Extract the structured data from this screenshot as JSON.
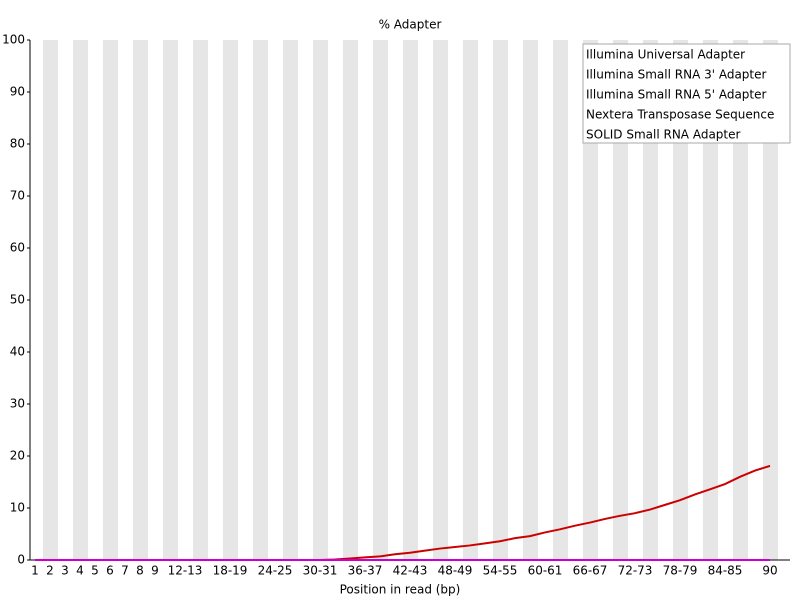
{
  "chart_data": {
    "type": "line",
    "title": "% Adapter",
    "x_label": "Position in read (bp)",
    "categories": [
      "1",
      "2",
      "3",
      "4",
      "5",
      "6",
      "7",
      "8",
      "9",
      null,
      "12-13",
      null,
      null,
      "18-19",
      null,
      null,
      "24-25",
      null,
      null,
      "30-31",
      null,
      null,
      "36-37",
      null,
      null,
      "42-43",
      null,
      null,
      "48-49",
      null,
      null,
      "54-55",
      null,
      null,
      "60-61",
      null,
      null,
      "66-67",
      null,
      null,
      "72-73",
      null,
      null,
      "78-79",
      null,
      null,
      "84-85",
      null,
      null,
      "90"
    ],
    "series": [
      {
        "name": "Illumina Universal Adapter",
        "color": "#cc0000",
        "values": [
          0,
          0,
          0,
          0,
          0,
          0,
          0,
          0,
          0,
          0,
          0,
          0,
          0,
          0,
          0,
          0,
          0,
          0,
          0,
          0,
          0.1,
          0.3,
          0.5,
          0.7,
          1.1,
          1.4,
          1.8,
          2.2,
          2.5,
          2.8,
          3.2,
          3.6,
          4.2,
          4.6,
          5.3,
          5.9,
          6.6,
          7.2,
          7.9,
          8.5,
          9.0,
          9.7,
          10.6,
          11.5,
          12.6,
          13.6,
          14.6,
          16.0,
          17.2,
          18.1
        ]
      },
      {
        "name": "Illumina Small RNA 3' Adapter",
        "color": "#0000aa",
        "values": [
          0,
          0,
          0,
          0,
          0,
          0,
          0,
          0,
          0,
          0,
          0,
          0,
          0,
          0,
          0,
          0,
          0,
          0,
          0,
          0,
          0,
          0,
          0,
          0,
          0,
          0,
          0,
          0,
          0,
          0,
          0,
          0,
          0,
          0,
          0,
          0,
          0,
          0,
          0,
          0,
          0,
          0,
          0,
          0,
          0,
          0,
          0,
          0,
          0,
          0
        ]
      },
      {
        "name": "Illumina Small RNA 5' Adapter",
        "color": "#00bb00",
        "values": [
          0,
          0,
          0,
          0,
          0,
          0,
          0,
          0,
          0,
          0,
          0,
          0,
          0,
          0,
          0,
          0,
          0,
          0,
          0,
          0,
          0,
          0,
          0,
          0,
          0,
          0,
          0,
          0,
          0,
          0,
          0,
          0,
          0,
          0,
          0,
          0,
          0,
          0,
          0,
          0,
          0,
          0,
          0,
          0,
          0,
          0,
          0,
          0,
          0,
          0
        ]
      },
      {
        "name": "Nextera Transposase Sequence",
        "color": "#404040",
        "values": [
          0,
          0,
          0,
          0,
          0,
          0,
          0,
          0,
          0,
          0,
          0,
          0,
          0,
          0,
          0,
          0,
          0,
          0,
          0,
          0,
          0,
          0,
          0,
          0,
          0,
          0,
          0,
          0,
          0,
          0,
          0,
          0,
          0,
          0,
          0,
          0,
          0,
          0,
          0,
          0,
          0,
          0,
          0,
          0,
          0,
          0,
          0,
          0,
          0,
          0
        ]
      },
      {
        "name": "SOLID Small RNA Adapter",
        "color": "#cc00cc",
        "values": [
          0,
          0,
          0,
          0,
          0,
          0,
          0,
          0,
          0,
          0,
          0,
          0,
          0,
          0,
          0,
          0,
          0,
          0,
          0,
          0,
          0,
          0,
          0,
          0,
          0,
          0,
          0,
          0,
          0,
          0,
          0,
          0,
          0,
          0,
          0,
          0,
          0,
          0,
          0,
          0,
          0,
          0,
          0,
          0,
          0,
          0,
          0,
          0,
          0,
          0
        ]
      }
    ],
    "ylim": [
      0,
      100
    ],
    "yticks": [
      0,
      10,
      20,
      30,
      40,
      50,
      60,
      70,
      80,
      90,
      100
    ],
    "legend": "top-right"
  }
}
